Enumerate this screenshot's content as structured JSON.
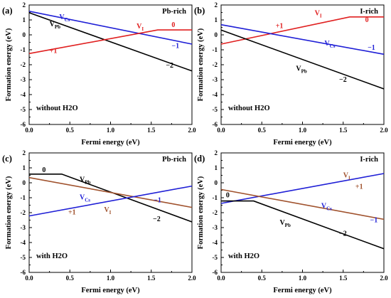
{
  "chart_data": [
    {
      "type": "line",
      "panel_label": "(a)",
      "corner_label": "Pb-rich",
      "condition_label": "without H2O",
      "xlabel": "Fermi energy (eV)",
      "ylabel": "Formation energy (eV)",
      "xlim": [
        0,
        2
      ],
      "ylim": [
        -6,
        2
      ],
      "xticks": [
        "0.0",
        "0.5",
        "1.0",
        "1.5",
        "2.0"
      ],
      "yticks": [
        "-6",
        "-5",
        "-4",
        "-3",
        "-2",
        "-1",
        "0",
        "1",
        "2"
      ],
      "series": [
        {
          "name": "VCs",
          "label_main": "V",
          "label_sub": "Cs",
          "color": "#1f1fd6",
          "x": [
            0.0,
            2.0
          ],
          "y": [
            1.58,
            -0.62
          ]
        },
        {
          "name": "VPb",
          "label_main": "V",
          "label_sub": "Pb",
          "color": "#000000",
          "x": [
            0.0,
            2.0
          ],
          "y": [
            1.48,
            -2.42
          ]
        },
        {
          "name": "VI",
          "label_main": "V",
          "label_sub": "I",
          "color": "#e02020",
          "x": [
            0.0,
            1.58,
            2.0
          ],
          "y": [
            -1.25,
            0.33,
            0.33
          ]
        }
      ],
      "annotations": [
        {
          "text": "V",
          "sub": "Cs",
          "x": 0.37,
          "y": 1.05,
          "color": "#1f1fd6"
        },
        {
          "text": "V",
          "sub": "Pb",
          "x": 0.25,
          "y": 0.58,
          "color": "#000000"
        },
        {
          "text": "V",
          "sub": "I",
          "x": 1.32,
          "y": 0.42,
          "color": "#e02020"
        },
        {
          "text": "0",
          "x": 1.75,
          "y": 0.52,
          "color": "#e02020"
        },
        {
          "text": "−1",
          "x": 1.75,
          "y": -0.88,
          "color": "#1f1fd6"
        },
        {
          "text": "+1",
          "x": 0.25,
          "y": -1.22,
          "color": "#e02020"
        },
        {
          "text": "−2",
          "x": 1.68,
          "y": -2.2,
          "color": "#000000"
        }
      ]
    },
    {
      "type": "line",
      "panel_label": "(b)",
      "corner_label": "I-rich",
      "condition_label": "without H2O",
      "xlabel": "Fermi energy (eV)",
      "ylabel": "Formation energy (eV)",
      "xlim": [
        0,
        2
      ],
      "ylim": [
        -6,
        2
      ],
      "xticks": [
        "0.0",
        "0.5",
        "1.0",
        "1.5",
        "2.0"
      ],
      "yticks": [
        "-6",
        "-5",
        "-4",
        "-3",
        "-2",
        "-1",
        "0",
        "1",
        "2"
      ],
      "series": [
        {
          "name": "VI",
          "label_main": "V",
          "label_sub": "I",
          "color": "#e02020",
          "x": [
            0.0,
            1.58,
            2.0
          ],
          "y": [
            -0.62,
            1.2,
            1.2
          ]
        },
        {
          "name": "VCs",
          "label_main": "V",
          "label_sub": "Cs",
          "color": "#1f1fd6",
          "x": [
            0.0,
            2.0
          ],
          "y": [
            0.68,
            -1.3
          ]
        },
        {
          "name": "VPb",
          "label_main": "V",
          "label_sub": "Pb",
          "color": "#000000",
          "x": [
            0.0,
            2.0
          ],
          "y": [
            0.32,
            -3.62
          ]
        }
      ],
      "annotations": [
        {
          "text": "V",
          "sub": "I",
          "x": 1.15,
          "y": 1.3,
          "color": "#e02020"
        },
        {
          "text": "0",
          "x": 1.77,
          "y": 0.85,
          "color": "#e02020"
        },
        {
          "text": "+1",
          "x": 0.67,
          "y": 0.45,
          "color": "#e02020"
        },
        {
          "text": "V",
          "sub": "Cs",
          "x": 1.27,
          "y": -0.72,
          "color": "#1f1fd6"
        },
        {
          "text": "−1",
          "x": 1.8,
          "y": -1.0,
          "color": "#1f1fd6"
        },
        {
          "text": "V",
          "sub": "Pb",
          "x": 0.92,
          "y": -2.4,
          "color": "#000000"
        },
        {
          "text": "−2",
          "x": 1.45,
          "y": -3.15,
          "color": "#000000"
        }
      ]
    },
    {
      "type": "line",
      "panel_label": "(c)",
      "corner_label": "Pb-rich",
      "condition_label": "with H2O",
      "xlabel": "Fermi energy (eV)",
      "ylabel": "Formation energy (eV)",
      "xlim": [
        0,
        2
      ],
      "ylim": [
        -6,
        2
      ],
      "xticks": [
        "0.0",
        "0.5",
        "1.0",
        "1.5",
        "2.0"
      ],
      "yticks": [
        "-6",
        "-5",
        "-4",
        "-3",
        "-2",
        "-1",
        "0",
        "1",
        "2"
      ],
      "series": [
        {
          "name": "VPb",
          "label_main": "V",
          "label_sub": "Pb",
          "color": "#000000",
          "x": [
            0.0,
            0.4,
            2.0
          ],
          "y": [
            0.58,
            0.58,
            -2.62
          ]
        },
        {
          "name": "VI",
          "label_main": "V",
          "label_sub": "I",
          "color": "#a0522d",
          "x": [
            0.0,
            2.0
          ],
          "y": [
            0.35,
            -1.65
          ]
        },
        {
          "name": "VCs",
          "label_main": "V",
          "label_sub": "Cs",
          "color": "#1f1fd6",
          "x": [
            0.0,
            2.0
          ],
          "y": [
            -2.22,
            -0.22
          ]
        }
      ],
      "annotations": [
        {
          "text": "0",
          "x": 0.16,
          "y": 0.72,
          "color": "#000000"
        },
        {
          "text": "V",
          "sub": "Pb",
          "x": 0.62,
          "y": 0.08,
          "color": "#000000"
        },
        {
          "text": "V",
          "sub": "Cs",
          "x": 0.62,
          "y": -1.12,
          "color": "#1f1fd6"
        },
        {
          "text": "−1",
          "x": 1.53,
          "y": -1.32,
          "color": "#1f1fd6"
        },
        {
          "text": "+1",
          "x": 0.48,
          "y": -2.12,
          "color": "#a0522d"
        },
        {
          "text": "V",
          "sub": "I",
          "x": 0.92,
          "y": -1.95,
          "color": "#a0522d"
        },
        {
          "text": "−2",
          "x": 1.52,
          "y": -2.58,
          "color": "#000000"
        }
      ]
    },
    {
      "type": "line",
      "panel_label": "(d)",
      "corner_label": "I-rich",
      "condition_label": "with H2O",
      "xlabel": "Fermi energy (eV)",
      "ylabel": "Formation energy (eV)",
      "xlim": [
        0,
        2
      ],
      "ylim": [
        -6,
        2
      ],
      "xticks": [
        "0.0",
        "0.5",
        "1.0",
        "1.5",
        "2.0"
      ],
      "yticks": [
        "-6",
        "-5",
        "-4",
        "-3",
        "-2",
        "-1",
        "0",
        "1",
        "2"
      ],
      "series": [
        {
          "name": "VCs",
          "label_main": "V",
          "label_sub": "Cs",
          "color": "#1f1fd6",
          "x": [
            0.0,
            2.0
          ],
          "y": [
            -1.38,
            0.62
          ]
        },
        {
          "name": "VI",
          "label_main": "V",
          "label_sub": "I",
          "color": "#a0522d",
          "x": [
            0.0,
            2.0
          ],
          "y": [
            -0.45,
            -2.45
          ]
        },
        {
          "name": "VPb",
          "label_main": "V",
          "label_sub": "Pb",
          "color": "#000000",
          "x": [
            0.0,
            0.4,
            2.0
          ],
          "y": [
            -1.22,
            -1.22,
            -4.42
          ]
        }
      ],
      "annotations": [
        {
          "text": "V",
          "sub": "I",
          "x": 1.5,
          "y": 0.35,
          "color": "#a0522d"
        },
        {
          "text": "+1",
          "x": 1.65,
          "y": -0.4,
          "color": "#a0522d"
        },
        {
          "text": "0",
          "x": 0.06,
          "y": -0.98,
          "color": "#000000"
        },
        {
          "text": "V",
          "sub": "Cs",
          "x": 1.23,
          "y": -1.68,
          "color": "#1f1fd6"
        },
        {
          "text": "−1",
          "x": 1.83,
          "y": -2.65,
          "color": "#1f1fd6"
        },
        {
          "text": "V",
          "sub": "Pb",
          "x": 0.72,
          "y": -2.8,
          "color": "#000000"
        },
        {
          "text": "−2",
          "x": 1.45,
          "y": -3.55,
          "color": "#000000"
        }
      ]
    }
  ]
}
